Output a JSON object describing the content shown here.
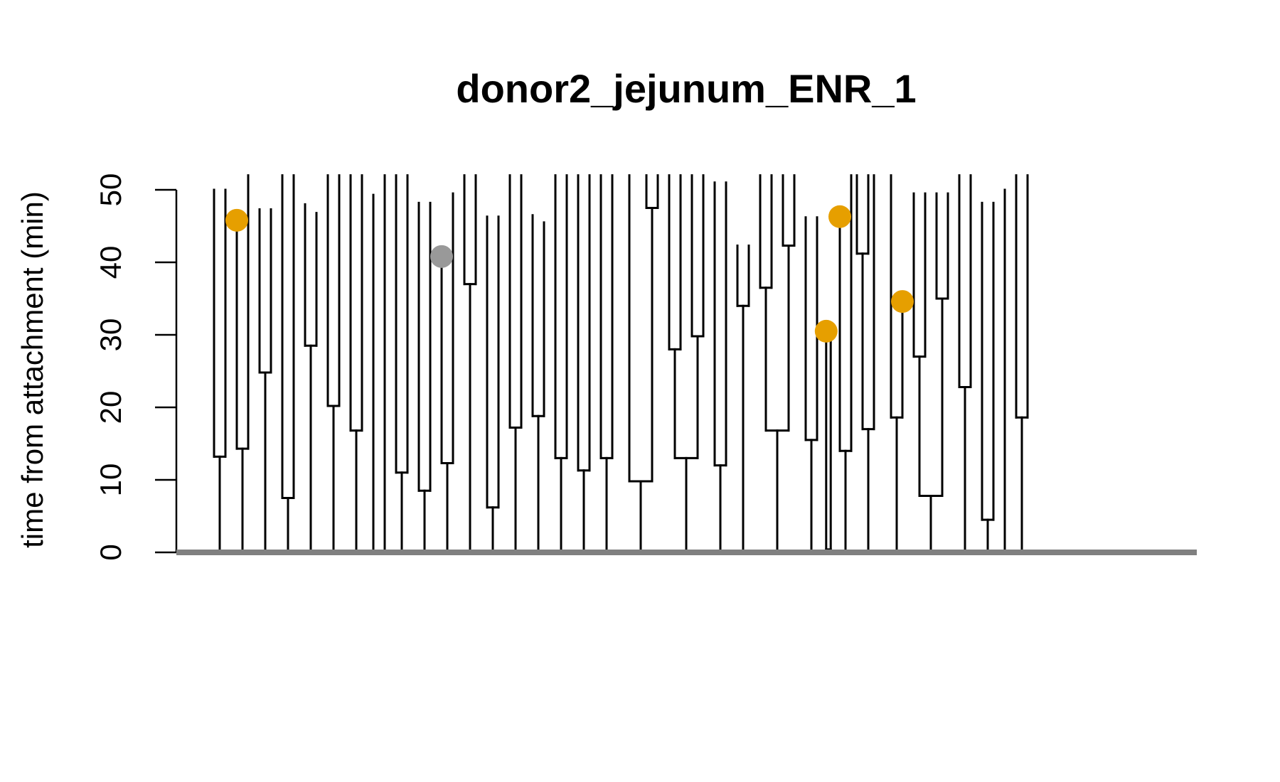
{
  "chart_data": {
    "type": "dendrogram",
    "title": "donor2_jejunum_ENR_1",
    "ylabel": "time from attachment (min)",
    "xlabel": "",
    "ylim": [
      0,
      50
    ],
    "yticks": [
      0,
      10,
      20,
      30,
      40,
      50
    ],
    "baseline_color": "#808080",
    "line_color": "#000000",
    "marker_colors": {
      "orange": "#E69F00",
      "gray": "#999999"
    },
    "x_range": [
      0,
      40
    ],
    "tree_top": 52,
    "tiny_split_height": 0.4,
    "families": [
      {
        "x": 0,
        "y": 0,
        "children": [
          {
            "x": -0.5,
            "y": 13.2,
            "children": [
              {
                "x": -0.75,
                "y": 50.0
              },
              {
                "x": -0.25,
                "y": 50.0
              }
            ]
          },
          {
            "x": 0.5,
            "y": 14.3,
            "children": [
              {
                "x": 0.25,
                "y": 45.8,
                "marker": "orange"
              },
              {
                "x": 0.75,
                "y": 52
              }
            ]
          }
        ]
      },
      {
        "x": 1.5,
        "y": 0,
        "children": [
          {
            "x": 1.5,
            "y": 24.8,
            "children": [
              {
                "x": 1.25,
                "y": 47.3
              },
              {
                "x": 1.75,
                "y": 47.3
              }
            ]
          }
        ]
      },
      {
        "x": 2.5,
        "y": 0,
        "children": [
          {
            "x": 2.5,
            "y": 7.5,
            "children": [
              {
                "x": 2.25,
                "y": 52
              },
              {
                "x": 2.75,
                "y": 52
              }
            ]
          }
        ]
      },
      {
        "x": 3.5,
        "y": 0,
        "children": [
          {
            "x": 3.5,
            "y": 28.5,
            "children": [
              {
                "x": 3.25,
                "y": 48.0
              },
              {
                "x": 3.75,
                "y": 46.8
              }
            ]
          }
        ]
      },
      {
        "x": 4.5,
        "y": 0,
        "children": [
          {
            "x": 4.5,
            "y": 20.2,
            "children": [
              {
                "x": 4.25,
                "y": 52
              },
              {
                "x": 4.75,
                "y": 52
              }
            ]
          }
        ]
      },
      {
        "x": 5.5,
        "y": 0,
        "children": [
          {
            "x": 5.5,
            "y": 16.8,
            "children": [
              {
                "x": 5.25,
                "y": 52
              },
              {
                "x": 5.75,
                "y": 52
              }
            ]
          }
        ]
      },
      {
        "x": 6.25,
        "y": 0,
        "children": [
          {
            "x": 6.25,
            "y": 49.3
          }
        ]
      },
      {
        "x": 6.75,
        "y": 0,
        "children": [
          {
            "x": 6.75,
            "y": 52
          }
        ]
      },
      {
        "x": 7.5,
        "y": 0,
        "children": [
          {
            "x": 7.5,
            "y": 11.0,
            "children": [
              {
                "x": 7.25,
                "y": 52
              },
              {
                "x": 7.75,
                "y": 52
              }
            ]
          }
        ]
      },
      {
        "x": 8.5,
        "y": 0,
        "children": [
          {
            "x": 8.5,
            "y": 8.5,
            "children": [
              {
                "x": 8.25,
                "y": 48.2
              },
              {
                "x": 8.75,
                "y": 48.2
              }
            ]
          }
        ]
      },
      {
        "x": 9.5,
        "y": 0,
        "children": [
          {
            "x": 9.5,
            "y": 12.3,
            "children": [
              {
                "x": 9.25,
                "y": 40.8,
                "marker": "gray"
              },
              {
                "x": 9.75,
                "y": 49.5
              }
            ]
          }
        ]
      },
      {
        "x": 10.5,
        "y": 0,
        "children": [
          {
            "x": 10.5,
            "y": 37.0,
            "children": [
              {
                "x": 10.25,
                "y": 52
              },
              {
                "x": 10.75,
                "y": 52
              }
            ]
          }
        ]
      },
      {
        "x": 11.5,
        "y": 0,
        "children": [
          {
            "x": 11.5,
            "y": 6.2,
            "children": [
              {
                "x": 11.25,
                "y": 46.3
              },
              {
                "x": 11.75,
                "y": 46.3
              }
            ]
          }
        ]
      },
      {
        "x": 12.5,
        "y": 0,
        "children": [
          {
            "x": 12.5,
            "y": 17.2,
            "children": [
              {
                "x": 12.25,
                "y": 52
              },
              {
                "x": 12.75,
                "y": 52
              }
            ]
          }
        ]
      },
      {
        "x": 13.5,
        "y": 0,
        "children": [
          {
            "x": 13.5,
            "y": 18.8,
            "children": [
              {
                "x": 13.25,
                "y": 46.5
              },
              {
                "x": 13.75,
                "y": 45.5
              }
            ]
          }
        ]
      },
      {
        "x": 14.5,
        "y": 0,
        "children": [
          {
            "x": 14.5,
            "y": 13.0,
            "children": [
              {
                "x": 14.25,
                "y": 52
              },
              {
                "x": 14.75,
                "y": 52
              }
            ]
          }
        ]
      },
      {
        "x": 15.5,
        "y": 0,
        "children": [
          {
            "x": 15.5,
            "y": 11.3,
            "children": [
              {
                "x": 15.25,
                "y": 52
              },
              {
                "x": 15.75,
                "y": 52
              }
            ]
          }
        ]
      },
      {
        "x": 16.5,
        "y": 0,
        "children": [
          {
            "x": 16.5,
            "y": 13.0,
            "children": [
              {
                "x": 16.25,
                "y": 52
              },
              {
                "x": 16.75,
                "y": 52
              }
            ]
          }
        ]
      },
      {
        "x": 18.0,
        "y": 0,
        "children": [
          {
            "x": 18.0,
            "y": 9.8,
            "children": [
              {
                "x": 17.5,
                "y": 52
              },
              {
                "x": 18.5,
                "y": 47.5,
                "children": [
                  {
                    "x": 18.25,
                    "y": 52
                  },
                  {
                    "x": 18.75,
                    "y": 52
                  }
                ]
              }
            ]
          }
        ]
      },
      {
        "x": 20.0,
        "y": 0,
        "children": [
          {
            "x": 20.0,
            "y": 13.0,
            "children": [
              {
                "x": 19.5,
                "y": 28.0,
                "children": [
                  {
                    "x": 19.25,
                    "y": 52
                  },
                  {
                    "x": 19.75,
                    "y": 52
                  }
                ]
              },
              {
                "x": 20.5,
                "y": 29.8,
                "children": [
                  {
                    "x": 20.25,
                    "y": 52
                  },
                  {
                    "x": 20.75,
                    "y": 52
                  }
                ]
              }
            ]
          }
        ]
      },
      {
        "x": 21.5,
        "y": 0,
        "children": [
          {
            "x": 21.5,
            "y": 12.0,
            "children": [
              {
                "x": 21.25,
                "y": 51.0
              },
              {
                "x": 21.75,
                "y": 51.0
              }
            ]
          }
        ]
      },
      {
        "x": 22.5,
        "y": 0,
        "children": [
          {
            "x": 22.5,
            "y": 34.0,
            "children": [
              {
                "x": 22.25,
                "y": 42.3
              },
              {
                "x": 22.75,
                "y": 42.3
              }
            ]
          }
        ]
      },
      {
        "x": 24.0,
        "y": 0,
        "children": [
          {
            "x": 24.0,
            "y": 16.8,
            "children": [
              {
                "x": 23.5,
                "y": 36.5,
                "children": [
                  {
                    "x": 23.25,
                    "y": 52
                  },
                  {
                    "x": 23.75,
                    "y": 52
                  }
                ]
              },
              {
                "x": 24.5,
                "y": 42.3,
                "children": [
                  {
                    "x": 24.25,
                    "y": 52
                  },
                  {
                    "x": 24.75,
                    "y": 52
                  }
                ]
              }
            ]
          }
        ]
      },
      {
        "x": 25.5,
        "y": 0,
        "children": [
          {
            "x": 25.5,
            "y": 15.5,
            "children": [
              {
                "x": 25.25,
                "y": 46.2
              },
              {
                "x": 25.75,
                "y": 46.2
              }
            ]
          }
        ]
      },
      {
        "x": 26.25,
        "y": 0,
        "children": [
          {
            "x": 26.25,
            "y": 0.4,
            "children": [
              {
                "x": 26.15,
                "y": 30.5,
                "marker": "orange"
              },
              {
                "x": 26.35,
                "y": 30.5
              }
            ]
          }
        ]
      },
      {
        "x": 27.0,
        "y": 0,
        "children": [
          {
            "x": 27.0,
            "y": 14.0,
            "children": [
              {
                "x": 26.75,
                "y": 46.3,
                "marker": "orange"
              },
              {
                "x": 27.25,
                "y": 52
              }
            ]
          }
        ]
      },
      {
        "x": 28.0,
        "y": 0,
        "children": [
          {
            "x": 28.0,
            "y": 17.0,
            "children": [
              {
                "x": 27.75,
                "y": 41.2,
                "children": [
                  {
                    "x": 27.5,
                    "y": 52
                  },
                  {
                    "x": 28.0,
                    "y": 52
                  }
                ]
              },
              {
                "x": 28.25,
                "y": 52
              }
            ]
          }
        ]
      },
      {
        "x": 29.25,
        "y": 0,
        "children": [
          {
            "x": 29.25,
            "y": 18.6,
            "children": [
              {
                "x": 29.0,
                "y": 52
              },
              {
                "x": 29.5,
                "y": 34.6,
                "marker": "orange"
              }
            ]
          }
        ]
      },
      {
        "x": 30.75,
        "y": 0,
        "children": [
          {
            "x": 30.75,
            "y": 7.8,
            "children": [
              {
                "x": 30.25,
                "y": 27.0,
                "children": [
                  {
                    "x": 30.0,
                    "y": 49.5
                  },
                  {
                    "x": 30.5,
                    "y": 49.5
                  }
                ]
              },
              {
                "x": 31.25,
                "y": 35.0,
                "children": [
                  {
                    "x": 31.0,
                    "y": 49.5
                  },
                  {
                    "x": 31.5,
                    "y": 49.5
                  }
                ]
              }
            ]
          }
        ]
      },
      {
        "x": 32.25,
        "y": 0,
        "children": [
          {
            "x": 32.25,
            "y": 22.8,
            "children": [
              {
                "x": 32.0,
                "y": 52
              },
              {
                "x": 32.5,
                "y": 52
              }
            ]
          }
        ]
      },
      {
        "x": 33.25,
        "y": 0,
        "children": [
          {
            "x": 33.25,
            "y": 4.5,
            "children": [
              {
                "x": 33.0,
                "y": 48.2
              },
              {
                "x": 33.5,
                "y": 48.2
              }
            ]
          }
        ]
      },
      {
        "x": 34.0,
        "y": 0,
        "children": [
          {
            "x": 34.0,
            "y": 50.0
          }
        ]
      },
      {
        "x": 34.75,
        "y": 0,
        "children": [
          {
            "x": 34.75,
            "y": 18.6,
            "children": [
              {
                "x": 34.5,
                "y": 52
              },
              {
                "x": 35.0,
                "y": 52
              }
            ]
          }
        ]
      }
    ]
  }
}
